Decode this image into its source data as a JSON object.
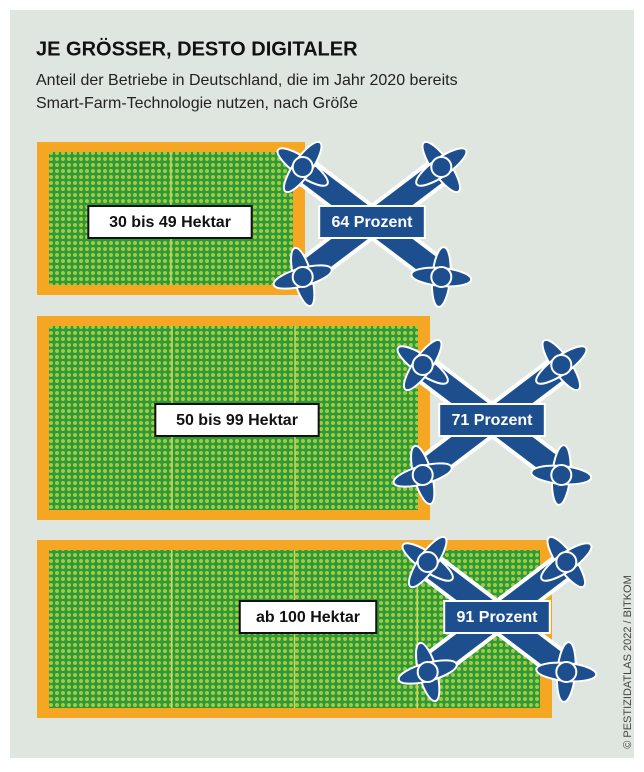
{
  "header": {
    "title": "JE GRÖSSER, DESTO DIGITALER",
    "subtitle_lines": [
      "Anteil der Betriebe in Deutschland, die im Jahr 2020 bereits",
      "Smart-Farm-Technologie nutzen, nach Größe"
    ]
  },
  "items": [
    {
      "label": "30 bis 49 Hektar",
      "share": "64 Prozent"
    },
    {
      "label": "50 bis 99 Hektar",
      "share": "71 Prozent"
    },
    {
      "label": "ab 100 Hektar",
      "share": "91 Prozent"
    }
  ],
  "credit": "© PESTIZIDATLAS 2022 / BITKOM"
}
